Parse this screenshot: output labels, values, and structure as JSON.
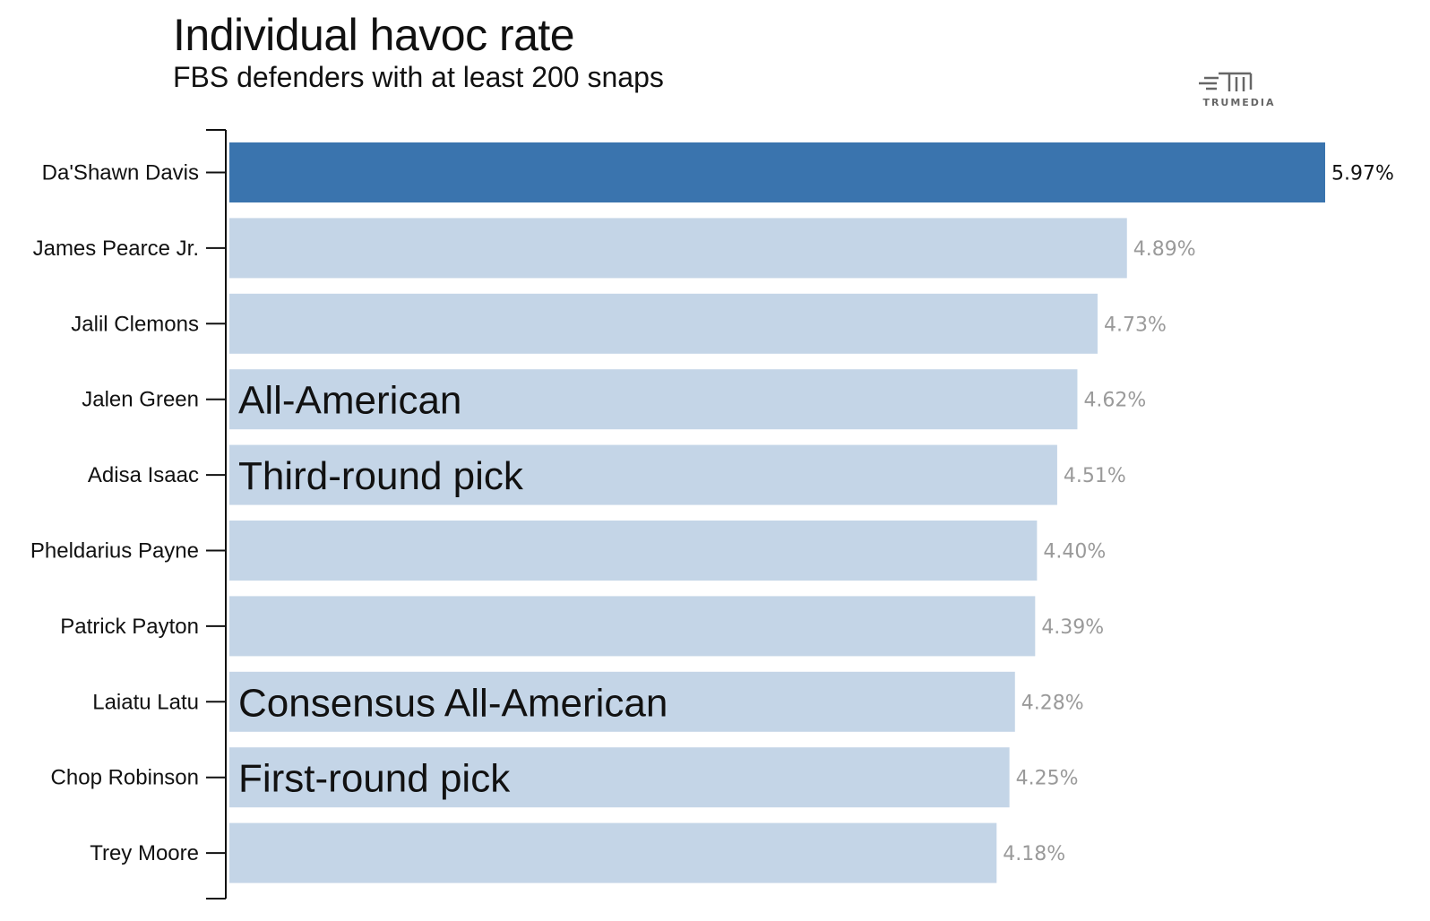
{
  "chart_data": {
    "type": "bar",
    "orientation": "horizontal",
    "title": "Individual havoc rate",
    "subtitle": "FBS defenders with at least 200 snaps",
    "source_logo": "TRUMEDIA",
    "categories": [
      "Da'Shawn Davis",
      "James Pearce Jr.",
      "Jalil Clemons",
      "Jalen Green",
      "Adisa Isaac",
      "Pheldarius Payne",
      "Patrick Payton",
      "Laiatu Latu",
      "Chop Robinson",
      "Trey Moore"
    ],
    "values": [
      5.97,
      4.89,
      4.73,
      4.62,
      4.51,
      4.4,
      4.39,
      4.28,
      4.25,
      4.18
    ],
    "value_labels": [
      "5.97%",
      "4.89%",
      "4.73%",
      "4.62%",
      "4.51%",
      "4.40%",
      "4.39%",
      "4.28%",
      "4.25%",
      "4.18%"
    ],
    "highlight_index": 0,
    "annotations": [
      "",
      "",
      "",
      "All-American",
      "Third-round pick",
      "",
      "",
      "Consensus All-American",
      "First-round pick",
      ""
    ],
    "xlim": [
      0,
      5.97
    ],
    "xlabel": "",
    "ylabel": "",
    "grid": false,
    "colors": {
      "highlight": "#3a74ae",
      "default": "#c4d5e7",
      "highlight_label": "#111111",
      "default_label": "#9a9a9a",
      "axis": "#111111"
    }
  }
}
